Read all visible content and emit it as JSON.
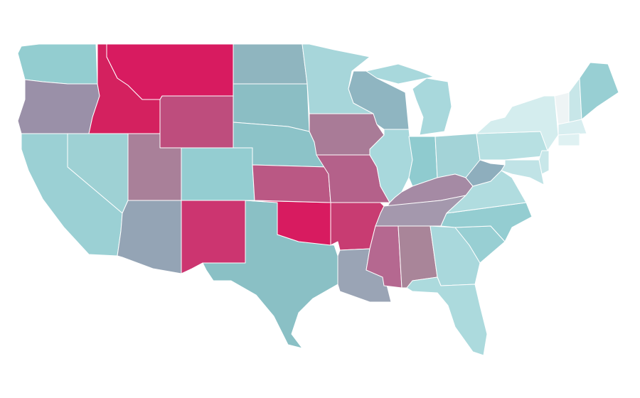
{
  "map": {
    "regions": [
      {
        "color": "#93cdd0"
      },
      {
        "color": "#9a90a8"
      },
      {
        "color": "#d4215f"
      },
      {
        "color": "#d81b60"
      },
      {
        "color": "#be4d7d"
      },
      {
        "color": "#8fb5bf"
      },
      {
        "color": "#8bbec4"
      },
      {
        "color": "#8cc3c8"
      },
      {
        "color": "#94cdd1"
      },
      {
        "color": "#a98099"
      },
      {
        "color": "#9ed1d4"
      },
      {
        "color": "#9bd0d4"
      },
      {
        "color": "#94a4b5"
      },
      {
        "color": "#cc3570"
      },
      {
        "color": "#8ac0c5"
      },
      {
        "color": "#d81b60"
      },
      {
        "color": "#ba5884"
      },
      {
        "color": "#a97b97"
      },
      {
        "color": "#b4618a"
      },
      {
        "color": "#a7d6da"
      },
      {
        "color": "#8fb5c1"
      },
      {
        "color": "#a8d8dc"
      },
      {
        "color": "#a8d8dc"
      },
      {
        "color": "#8fcbcf"
      },
      {
        "color": "#a3d3d7"
      },
      {
        "color": "#a58aa4"
      },
      {
        "color": "#a498ad"
      },
      {
        "color": "#c83c72"
      },
      {
        "color": "#9aa4b5"
      },
      {
        "color": "#b56890"
      },
      {
        "color": "#a98599"
      },
      {
        "color": "#a9d8dc"
      },
      {
        "color": "#acdadd"
      },
      {
        "color": "#98cfd3"
      },
      {
        "color": "#94cdd1"
      },
      {
        "color": "#b0dcdf"
      },
      {
        "color": "#8eaebd"
      },
      {
        "color": "#b7e0e2"
      },
      {
        "color": "#d4edee"
      },
      {
        "color": "#eef4f5"
      },
      {
        "color": "#c7e6e8"
      },
      {
        "color": "#98cfd3"
      },
      {
        "color": "#d8eef0"
      },
      {
        "color": "#dff1f2"
      },
      {
        "color": "#c8e7e9"
      },
      {
        "color": "#c0e3e6"
      }
    ]
  }
}
